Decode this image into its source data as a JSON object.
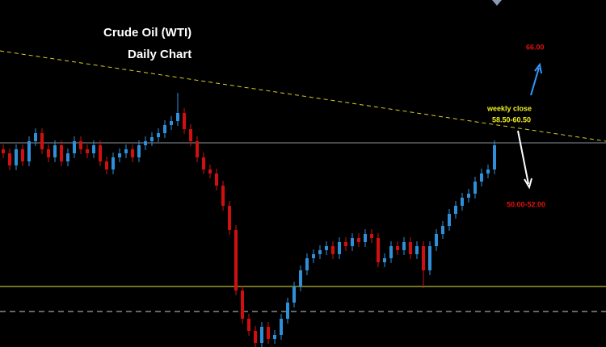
{
  "chart_data": {
    "type": "candlestick",
    "title": "Crude Oil (WTI)",
    "subtitle": "Daily Chart",
    "annotations": {
      "upper_target": "66.00",
      "weekly_close_label": "weekly close",
      "weekly_close_range": "58.50-60.50",
      "lower_target": "50.00-52.00"
    },
    "ylim": [
      30,
      73
    ],
    "up_color": "#2f8fd8",
    "down_color": "#d01010",
    "open": [
      54.5,
      54,
      52.5,
      54.5,
      53,
      55.5,
      56.5,
      54.5,
      53.5,
      55,
      53,
      54,
      55.5,
      54.5,
      54,
      55,
      53,
      52,
      53.5,
      54,
      54.5,
      53.5,
      55,
      55.5,
      56,
      56.5,
      57.5,
      58,
      59,
      57,
      55.5,
      53.5,
      52,
      51.5,
      50,
      47.5,
      44.5,
      37,
      33.5,
      32,
      30.5,
      32.5,
      31,
      31.5,
      33.5,
      35.5,
      37.5,
      39.5,
      41,
      41.5,
      42,
      42.5,
      41.5,
      43,
      42.5,
      43.5,
      43,
      44,
      43.5,
      40.5,
      41,
      42.5,
      42,
      43,
      41.5,
      42.5,
      39.5,
      42.5,
      44,
      45,
      46.5,
      47.5,
      48.5,
      49,
      50.5,
      51.5,
      52
    ],
    "high": [
      55.1,
      54.6,
      55.1,
      55.1,
      56.1,
      57.1,
      57.1,
      55.1,
      55.6,
      55.6,
      54.6,
      56.1,
      56.1,
      55.1,
      55.6,
      55.6,
      53.6,
      54.1,
      54.6,
      55.1,
      55.1,
      55.6,
      56.1,
      56.6,
      57.1,
      58.1,
      58.6,
      61.5,
      59.6,
      57.6,
      56.1,
      54.1,
      52.6,
      52.1,
      50.6,
      48.1,
      45.1,
      37.6,
      34.1,
      32.6,
      33.1,
      33.1,
      32.1,
      34.1,
      36.1,
      38.1,
      40.1,
      41.6,
      42.1,
      42.6,
      43.1,
      43.1,
      43.6,
      43.6,
      44.1,
      44.1,
      44.6,
      44.6,
      44.1,
      41.6,
      43.1,
      43.1,
      43.6,
      43.6,
      43.1,
      43.1,
      43.1,
      44.6,
      45.6,
      47.1,
      48.1,
      49.1,
      49.6,
      51.1,
      52.1,
      52.6,
      55.6
    ],
    "low": [
      53.4,
      51.9,
      51.9,
      52.4,
      52.4,
      54.9,
      53.9,
      52.9,
      52.9,
      52.4,
      52.4,
      53.4,
      53.9,
      53.4,
      53.4,
      52.4,
      51.4,
      51.4,
      52.9,
      53.4,
      52.9,
      52.9,
      54.4,
      54.9,
      55.4,
      55.9,
      56.9,
      57.4,
      56.4,
      54.9,
      52.9,
      51.4,
      50.9,
      49.4,
      46.9,
      43.9,
      36.4,
      32.9,
      31.4,
      29.9,
      29.9,
      30.4,
      30.4,
      30.9,
      32.9,
      34.9,
      36.9,
      38.9,
      40.4,
      40.9,
      41.4,
      40.9,
      40.9,
      41.9,
      41.9,
      42.4,
      42.4,
      42.9,
      39.9,
      39.9,
      40.4,
      41.4,
      41.4,
      40.9,
      40.9,
      37.3,
      38.9,
      41.9,
      43.4,
      44.4,
      45.9,
      46.9,
      47.9,
      48.4,
      49.9,
      50.9,
      51.4
    ],
    "close": [
      54,
      52.5,
      54.5,
      53,
      55.5,
      56.5,
      54.5,
      53.5,
      55,
      53,
      54,
      55.5,
      54.5,
      54,
      55,
      53,
      52,
      53.5,
      54,
      54.5,
      53.5,
      55,
      55.5,
      56,
      56.5,
      57.5,
      58,
      59,
      57,
      55.5,
      53.5,
      52,
      51.5,
      50,
      47.5,
      44.5,
      37,
      33.5,
      32,
      30.5,
      32.5,
      31,
      31.5,
      33.5,
      35.5,
      37.5,
      39.5,
      41,
      41.5,
      42,
      42.5,
      41.5,
      43,
      42.5,
      43.5,
      43,
      44,
      43.5,
      40.5,
      41,
      42.5,
      42,
      43,
      41.5,
      42.5,
      39.5,
      42.5,
      44,
      45,
      46.5,
      47.5,
      48.5,
      49,
      50.5,
      51.5,
      52,
      55
    ]
  }
}
